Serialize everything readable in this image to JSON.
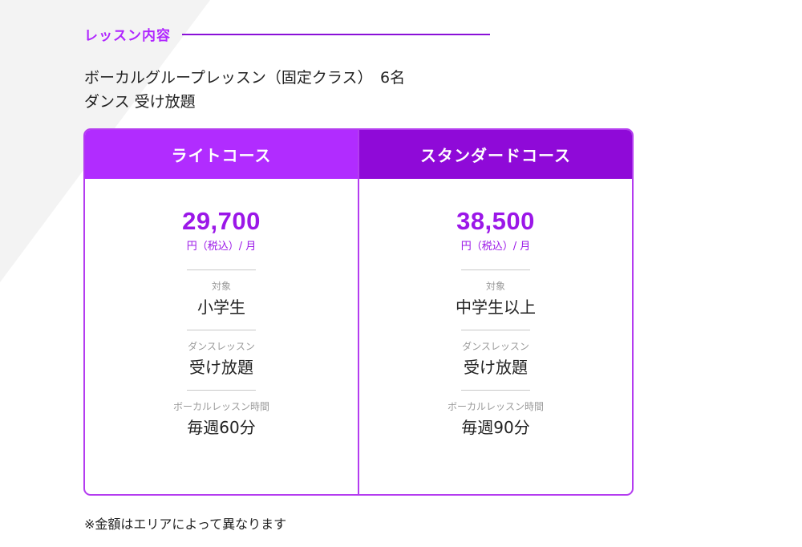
{
  "section": {
    "heading": "レッスン内容"
  },
  "intro": {
    "line1": "ボーカルグループレッスン（固定クラス）　6名",
    "line2": "ダンス 受け放題"
  },
  "courses": [
    {
      "name": "ライトコース",
      "price": "29,700",
      "unit": "円（税込）/ 月",
      "target_label": "対象",
      "target_value": "小学生",
      "dance_label": "ダンスレッスン",
      "dance_value": "受け放題",
      "vocal_label": "ボーカルレッスン時間",
      "vocal_value": "毎週60分"
    },
    {
      "name": "スタンダードコース",
      "price": "38,500",
      "unit": "円（税込）/ 月",
      "target_label": "対象",
      "target_value": "中学生以上",
      "dance_label": "ダンスレッスン",
      "dance_value": "受け放題",
      "vocal_label": "ボーカルレッスン時間",
      "vocal_value": "毎週90分"
    }
  ],
  "note": "※金額はエリアによって異なります",
  "colors": {
    "accent": "#b026ff",
    "lite_header": "#b12cff",
    "standard_header": "#8f0ad8",
    "price": "#9b17e8",
    "border": "#b43cf0"
  }
}
